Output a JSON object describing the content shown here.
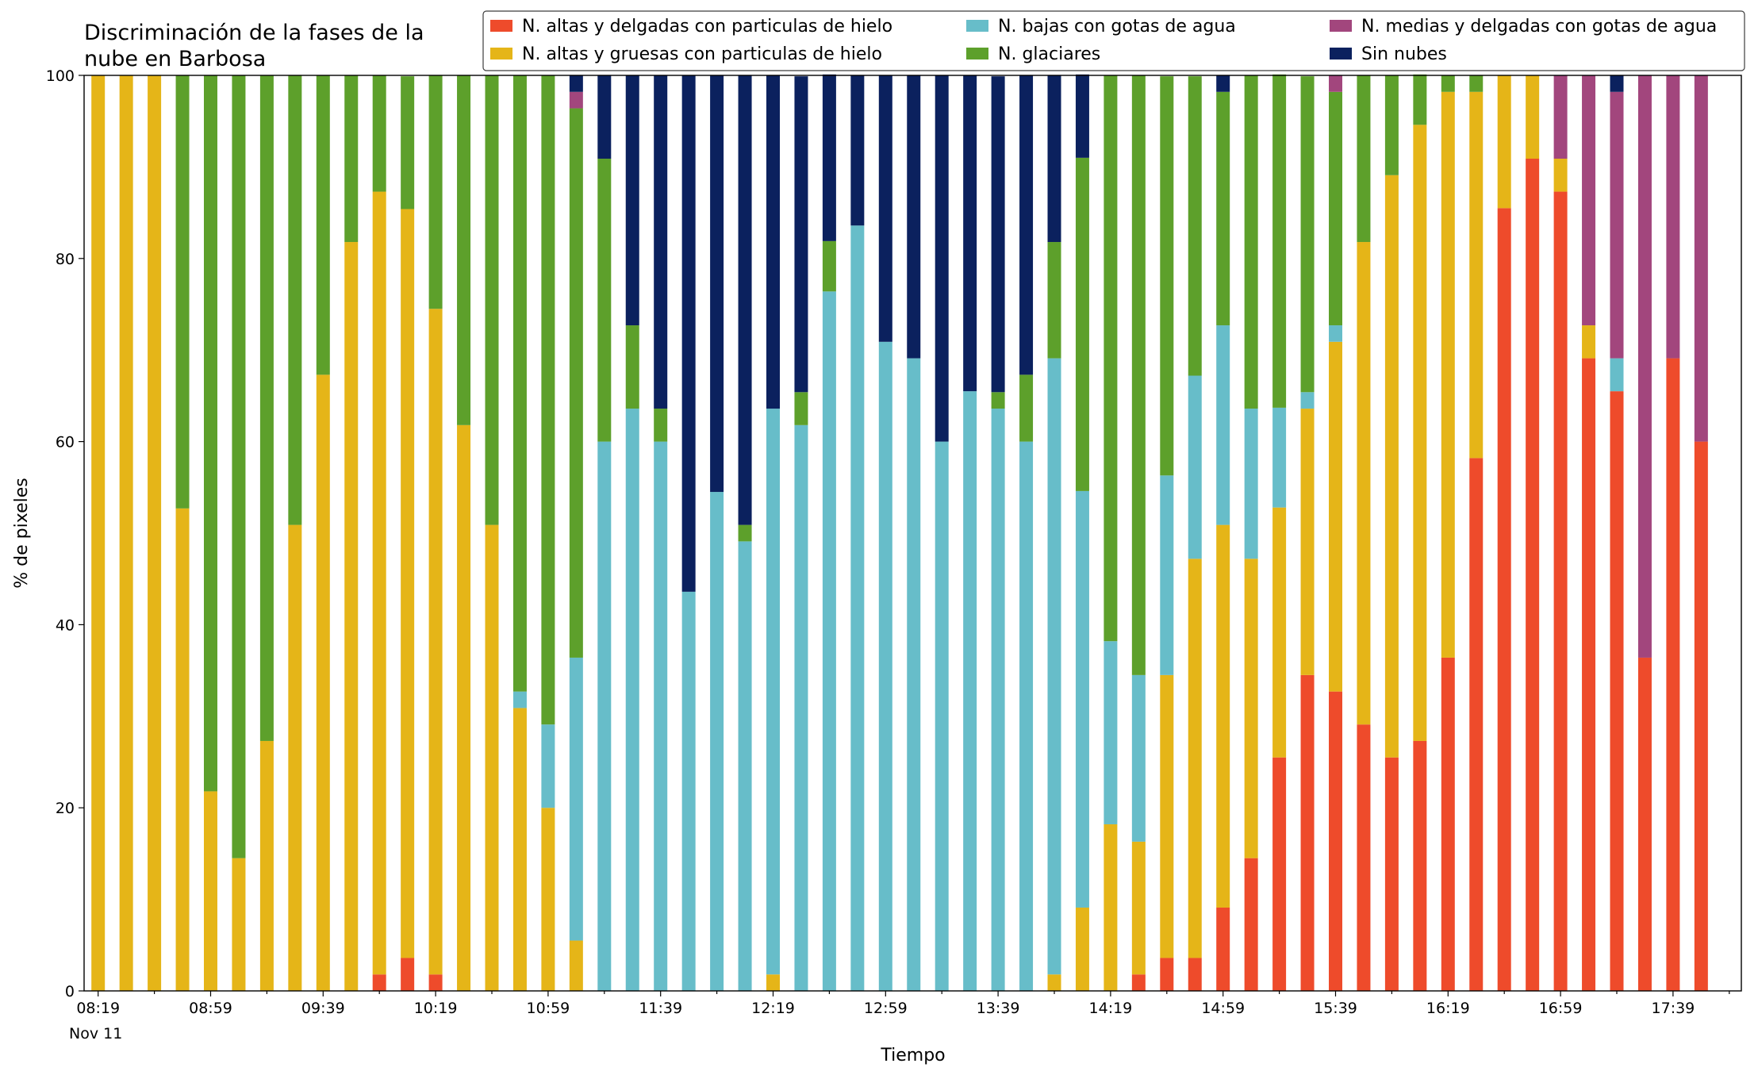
{
  "chart_data": {
    "type": "stacked_bar",
    "title": [
      "Discriminación de la fases de la",
      "nube en Barbosa"
    ],
    "x_label": "Tiempo",
    "y_label": "% de pixeles",
    "x_date_label": "Nov 11",
    "categories": [
      "08:19",
      null,
      null,
      null,
      "08:59",
      null,
      null,
      null,
      "09:39",
      null,
      null,
      null,
      "10:19",
      null,
      null,
      null,
      "10:59",
      null,
      null,
      null,
      "11:39",
      null,
      null,
      null,
      "12:19",
      null,
      null,
      null,
      "12:59",
      null,
      null,
      null,
      "13:39",
      null,
      null,
      null,
      "14:19",
      null,
      null,
      null,
      "14:59",
      null,
      null,
      null,
      "15:39",
      null,
      null,
      null,
      "16:19",
      null,
      null,
      null,
      "16:59",
      null,
      null,
      null,
      "17:39",
      null
    ],
    "ylim": [
      0,
      100
    ],
    "yticks": [
      0,
      20,
      40,
      60,
      80,
      100
    ],
    "legend": "top-right",
    "series": [
      {
        "name": "N. altas y delgadas con particulas de hielo",
        "color": "#ee4b2b",
        "values": [
          0,
          0,
          0,
          0,
          0,
          0,
          0,
          0,
          0,
          0,
          1.8,
          3.6,
          1.8,
          0,
          0,
          0,
          0,
          0,
          0,
          0,
          0,
          0,
          0,
          0,
          0,
          0,
          0,
          0,
          0,
          0,
          0,
          0,
          0,
          0,
          0,
          0,
          0,
          1.8,
          3.6,
          3.6,
          9.1,
          14.5,
          25.5,
          34.5,
          32.7,
          29.1,
          25.5,
          27.3,
          36.4,
          58.2,
          85.5,
          90.9,
          87.3,
          69.1,
          65.5,
          36.4,
          69.1,
          60
        ]
      },
      {
        "name": "N. altas y gruesas con particulas de hielo",
        "color": "#e5b518",
        "values": [
          100,
          100,
          100,
          52.7,
          21.8,
          14.5,
          27.3,
          50.9,
          67.3,
          81.8,
          85.5,
          81.8,
          72.7,
          61.8,
          50.9,
          30.9,
          20,
          5.5,
          0,
          0,
          0,
          0,
          0,
          0,
          1.8,
          0,
          0,
          0,
          0,
          0,
          0,
          0,
          0,
          0,
          1.8,
          9.1,
          18.2,
          14.5,
          30.9,
          43.6,
          41.8,
          32.7,
          27.3,
          29.1,
          38.2,
          52.7,
          63.6,
          67.3,
          61.8,
          40,
          14.5,
          9.1,
          3.6,
          3.6,
          0,
          0,
          0,
          0
        ]
      },
      {
        "name": "N. bajas con gotas de agua",
        "color": "#67bdc9",
        "values": [
          0,
          0,
          0,
          0,
          0,
          0,
          0,
          0,
          0,
          0,
          0,
          0,
          0,
          0,
          0,
          1.8,
          9.1,
          30.9,
          60,
          63.6,
          60,
          43.6,
          54.5,
          49.1,
          61.8,
          61.8,
          76.4,
          83.6,
          70.9,
          69.1,
          60,
          65.5,
          63.6,
          60,
          67.3,
          45.5,
          20,
          18.2,
          21.8,
          20,
          21.8,
          16.4,
          10.9,
          1.8,
          1.8,
          0,
          0,
          0,
          0,
          0,
          0,
          0,
          0,
          0,
          3.6,
          0,
          0,
          0
        ]
      },
      {
        "name": "N. glaciares",
        "color": "#5da02b",
        "values": [
          0,
          0,
          0,
          47.3,
          78.2,
          85.5,
          72.7,
          49.1,
          32.7,
          18.2,
          12.7,
          14.5,
          25.5,
          38.2,
          49.1,
          67.3,
          70.9,
          60,
          30.9,
          9.1,
          3.6,
          0,
          0,
          1.8,
          0,
          3.6,
          5.5,
          0,
          0,
          0,
          0,
          0,
          1.8,
          7.3,
          12.7,
          36.4,
          61.8,
          65.5,
          43.6,
          32.7,
          25.5,
          36.4,
          36.4,
          34.5,
          25.5,
          18.2,
          10.9,
          5.5,
          1.8,
          1.8,
          0,
          0,
          0,
          0,
          0,
          0,
          0,
          0
        ]
      },
      {
        "name": "N. medias y delgadas con gotas de agua",
        "color": "#a2467d",
        "values": [
          0,
          0,
          0,
          0,
          0,
          0,
          0,
          0,
          0,
          0,
          0,
          0,
          0,
          0,
          0,
          0,
          0,
          1.8,
          0,
          0,
          0,
          0,
          0,
          0,
          0,
          0,
          0,
          0,
          0,
          0,
          0,
          0,
          0,
          0,
          0,
          0,
          0,
          0,
          0,
          0,
          0,
          0,
          0,
          0,
          1.8,
          0,
          0,
          0,
          0,
          0,
          0,
          0,
          9.1,
          27.3,
          29.1,
          63.6,
          30.9,
          40
        ]
      },
      {
        "name": "Sin nubes",
        "color": "#0b215e",
        "values": [
          0,
          0,
          0,
          0,
          0,
          0,
          0,
          0,
          0,
          0,
          0,
          0,
          0,
          0,
          0,
          0,
          0,
          1.8,
          9.1,
          27.3,
          36.4,
          56.4,
          45.5,
          49.1,
          36.4,
          34.5,
          18.2,
          16.4,
          29.1,
          30.9,
          40,
          34.5,
          34.5,
          32.7,
          18.2,
          9.1,
          0,
          0,
          0,
          0,
          1.8,
          0,
          0,
          0,
          0,
          0,
          0,
          0,
          0,
          0,
          0,
          0,
          0,
          0,
          1.8,
          0,
          0,
          0
        ]
      }
    ]
  }
}
